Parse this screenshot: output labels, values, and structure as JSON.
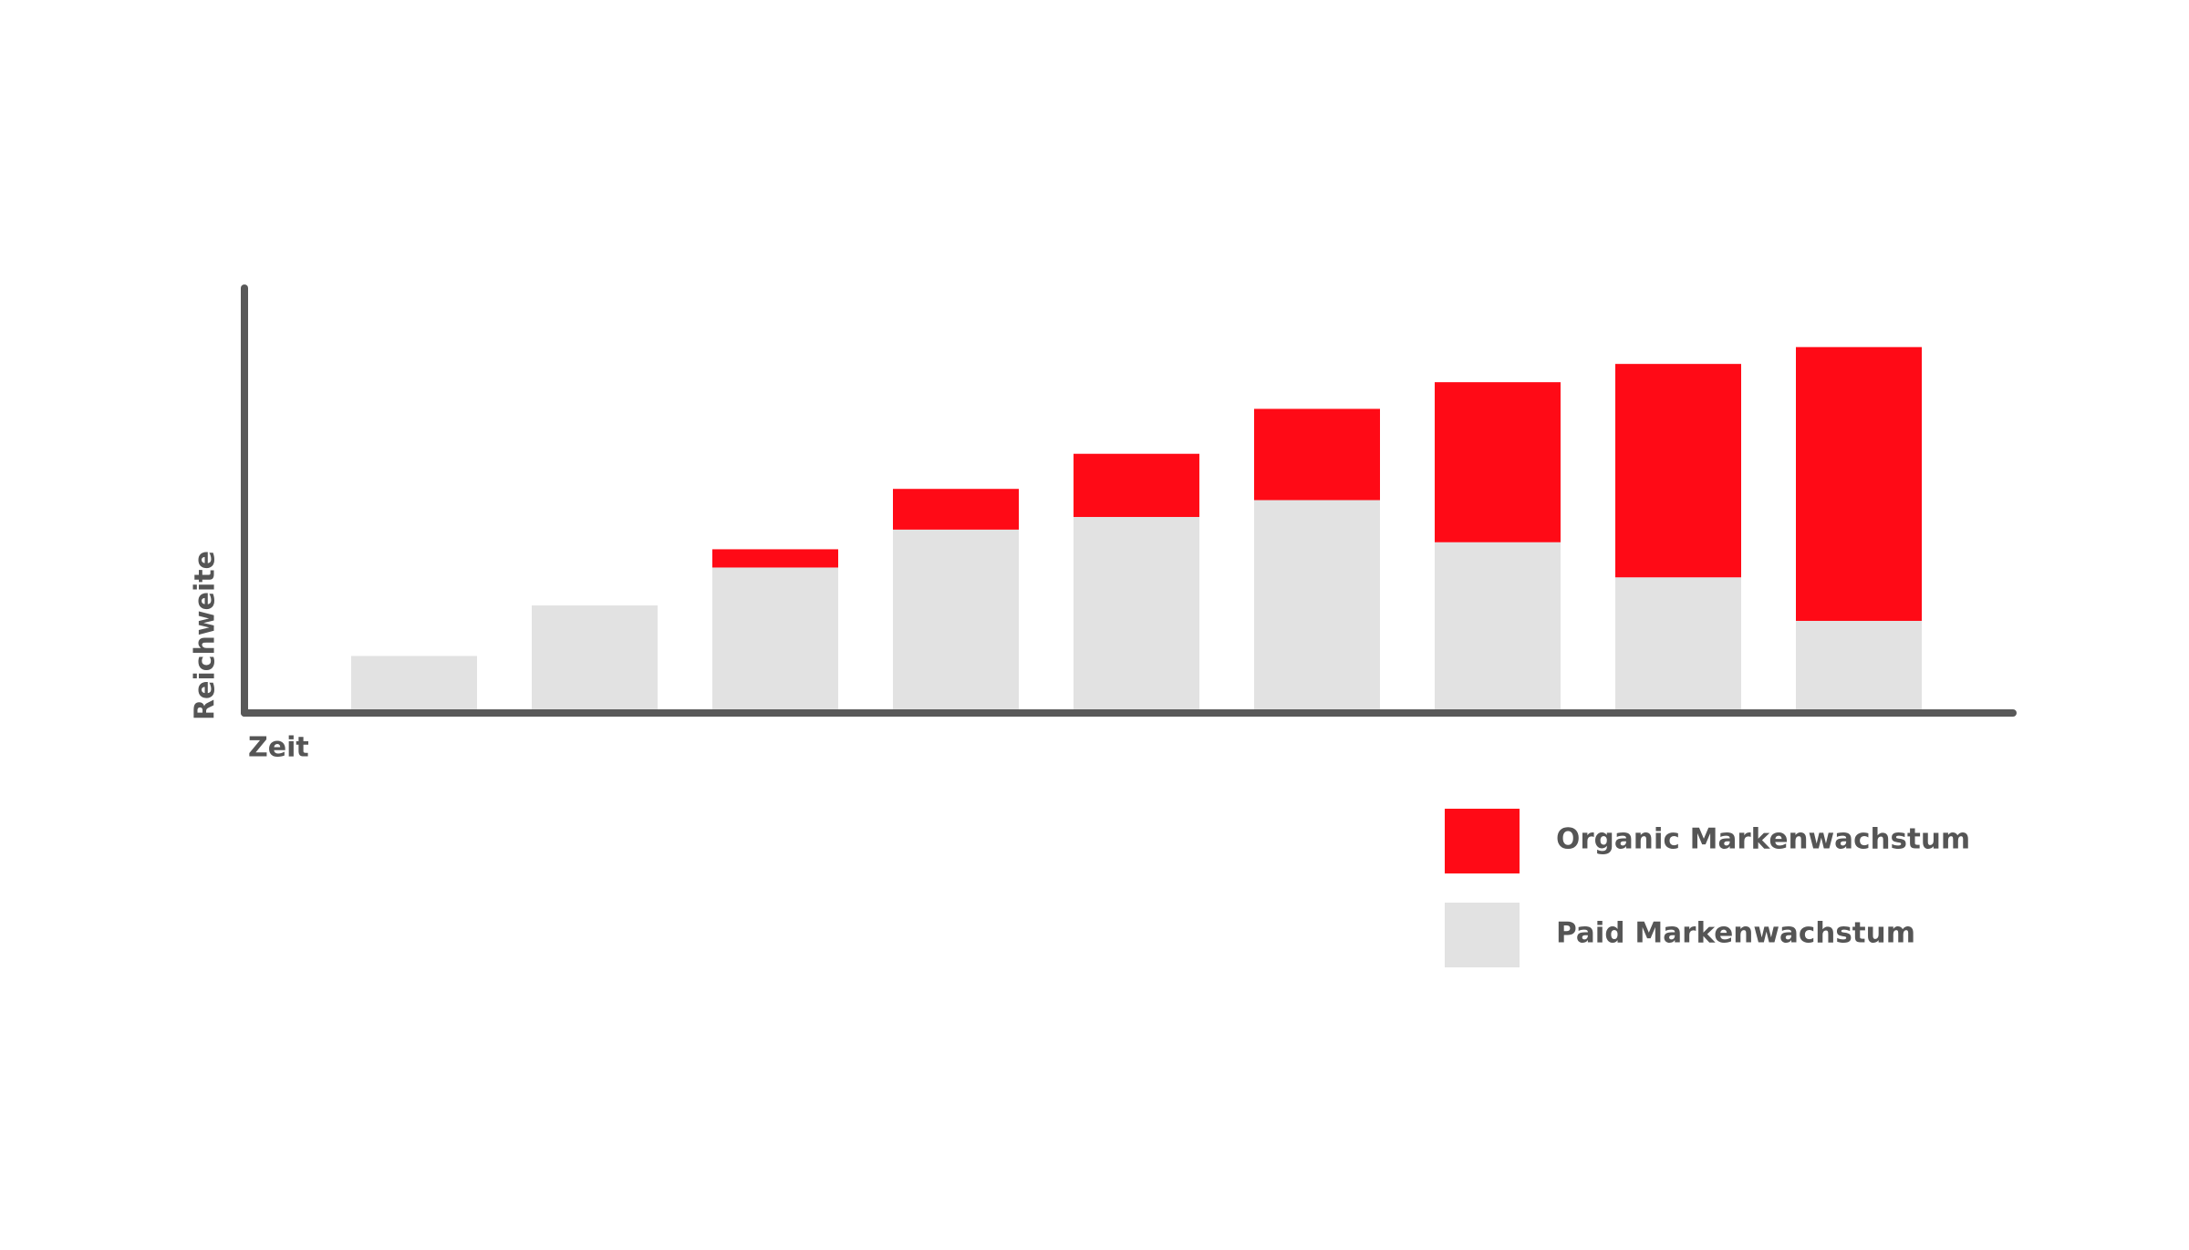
{
  "chart_data": {
    "type": "stacked-bar",
    "categories": [
      null,
      null,
      null,
      null,
      null,
      null,
      null,
      null,
      null
    ],
    "series": [
      {
        "name": "Paid Markenwachstum",
        "color": "#e2e2e2",
        "values": [
          38,
          74,
          101,
          128,
          137,
          149,
          119,
          94,
          63
        ]
      },
      {
        "name": "Organic Markenwachstum",
        "color": "#ff0a16",
        "values": [
          0,
          0,
          13,
          29,
          45,
          65,
          114,
          152,
          195
        ]
      }
    ],
    "ylim": [
      0,
      300
    ],
    "x_label": "Zeit",
    "y_label": "Reichweite",
    "axis_color": "#595959"
  }
}
